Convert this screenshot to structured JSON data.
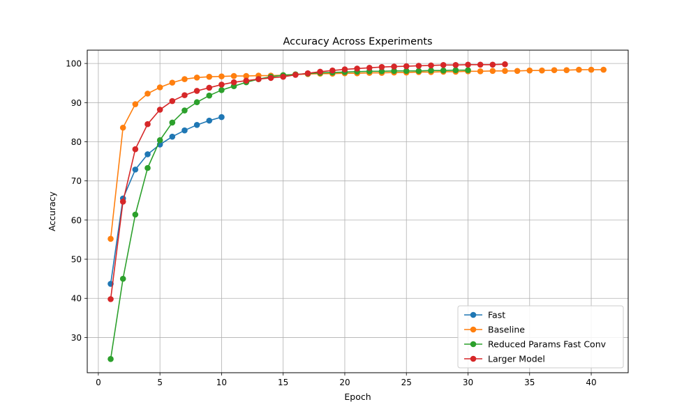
{
  "chart_data": {
    "type": "line",
    "title": "Accuracy Across Experiments",
    "xlabel": "Epoch",
    "ylabel": "Accuracy",
    "xlim": [
      -0.9,
      43.0
    ],
    "ylim": [
      21.0,
      103.4
    ],
    "xticks": [
      0,
      5,
      10,
      15,
      20,
      25,
      30,
      35,
      40
    ],
    "yticks": [
      30,
      40,
      50,
      60,
      70,
      80,
      90,
      100
    ],
    "grid": true,
    "legend_position": "lower-right",
    "series": [
      {
        "name": "Fast",
        "color": "#1f77b4",
        "x": [
          1,
          2,
          3,
          4,
          5,
          6,
          7,
          8,
          9,
          10
        ],
        "y": [
          43.7,
          65.5,
          72.9,
          76.8,
          79.3,
          81.3,
          82.9,
          84.3,
          85.4,
          86.3
        ]
      },
      {
        "name": "Baseline",
        "color": "#ff7f0e",
        "x": [
          1,
          2,
          3,
          4,
          5,
          6,
          7,
          8,
          9,
          10,
          11,
          12,
          13,
          14,
          15,
          16,
          17,
          18,
          19,
          20,
          21,
          22,
          23,
          24,
          25,
          26,
          27,
          28,
          29,
          30,
          31,
          32,
          33,
          34,
          35,
          36,
          37,
          38,
          39,
          40,
          41
        ],
        "y": [
          55.2,
          83.6,
          89.6,
          92.3,
          93.9,
          95.1,
          96.0,
          96.4,
          96.6,
          96.7,
          96.8,
          96.8,
          96.9,
          96.9,
          97.0,
          97.2,
          97.3,
          97.4,
          97.4,
          97.5,
          97.5,
          97.6,
          97.6,
          97.7,
          97.7,
          97.8,
          97.8,
          97.9,
          97.9,
          98.0,
          98.0,
          98.1,
          98.1,
          98.1,
          98.2,
          98.2,
          98.3,
          98.3,
          98.4,
          98.4,
          98.4
        ]
      },
      {
        "name": "Reduced Params Fast Conv",
        "color": "#2ca02c",
        "x": [
          1,
          2,
          3,
          4,
          5,
          6,
          7,
          8,
          9,
          10,
          11,
          12,
          13,
          14,
          15,
          16,
          17,
          18,
          19,
          20,
          21,
          22,
          23,
          24,
          25,
          26,
          27,
          28,
          29,
          30
        ],
        "y": [
          24.5,
          45.0,
          61.4,
          73.3,
          80.4,
          84.9,
          88.0,
          90.1,
          91.8,
          93.2,
          94.2,
          95.2,
          96.0,
          96.6,
          97.0,
          97.2,
          97.4,
          97.6,
          97.7,
          97.8,
          97.9,
          98.0,
          98.0,
          98.1,
          98.1,
          98.1,
          98.2,
          98.2,
          98.3,
          98.3
        ]
      },
      {
        "name": "Larger Model",
        "color": "#d62728",
        "x": [
          1,
          2,
          3,
          4,
          5,
          6,
          7,
          8,
          9,
          10,
          11,
          12,
          13,
          14,
          15,
          16,
          17,
          18,
          19,
          20,
          21,
          22,
          23,
          24,
          25,
          26,
          27,
          28,
          29,
          30,
          31,
          32,
          33
        ],
        "y": [
          39.8,
          64.7,
          78.1,
          84.5,
          88.2,
          90.4,
          91.9,
          93.0,
          93.8,
          94.6,
          95.2,
          95.6,
          96.0,
          96.3,
          96.6,
          97.1,
          97.5,
          97.9,
          98.2,
          98.5,
          98.7,
          98.9,
          99.1,
          99.2,
          99.3,
          99.4,
          99.5,
          99.6,
          99.6,
          99.7,
          99.7,
          99.7,
          99.8
        ]
      }
    ]
  }
}
